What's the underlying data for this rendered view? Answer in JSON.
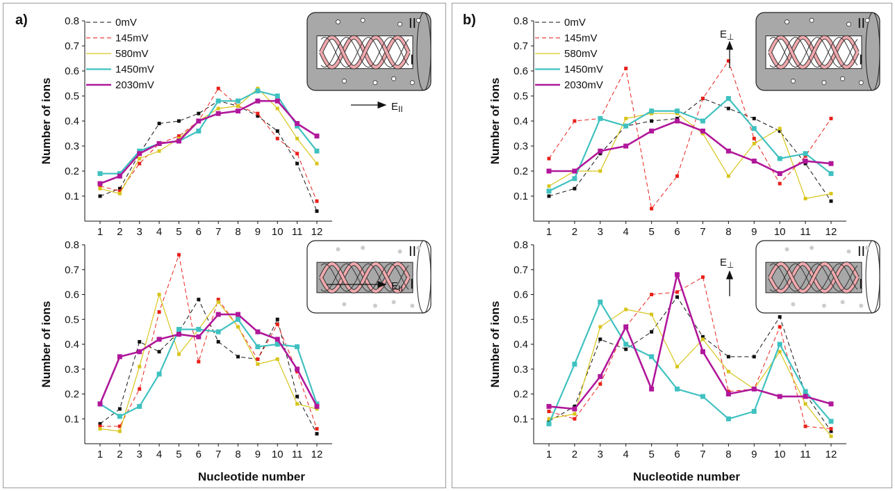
{
  "panels": [
    {
      "letter": "a)"
    },
    {
      "letter": "b)"
    }
  ],
  "x_axis_label": "Nucleotide number",
  "chart_data": [
    {
      "type": "line",
      "panel": "a)",
      "position": "top",
      "ylabel": "Number of ions",
      "ylim": [
        0,
        0.8
      ],
      "yticks": [
        0.1,
        0.2,
        0.3,
        0.4,
        0.5,
        0.6,
        0.7,
        0.8
      ],
      "x": [
        1,
        2,
        3,
        4,
        5,
        6,
        7,
        8,
        9,
        10,
        11,
        12
      ],
      "legend": "top-left",
      "field_label": "E",
      "field_subscript": "II",
      "field_direction": "parallel",
      "inset": "outer-gray",
      "series": [
        {
          "name": "0mV",
          "values": [
            0.1,
            0.13,
            0.27,
            0.39,
            0.4,
            0.43,
            0.48,
            0.46,
            0.42,
            0.36,
            0.23,
            0.04
          ]
        },
        {
          "name": "145mV",
          "values": [
            0.14,
            0.12,
            0.23,
            0.31,
            0.34,
            0.4,
            0.53,
            0.46,
            0.43,
            0.33,
            0.27,
            0.08
          ]
        },
        {
          "name": "580mV",
          "values": [
            0.13,
            0.11,
            0.25,
            0.28,
            0.33,
            0.4,
            0.45,
            0.46,
            0.53,
            0.45,
            0.33,
            0.23
          ]
        },
        {
          "name": "1450mV",
          "values": [
            0.19,
            0.19,
            0.28,
            0.31,
            0.32,
            0.36,
            0.48,
            0.48,
            0.52,
            0.5,
            0.38,
            0.28
          ]
        },
        {
          "name": "2030mV",
          "values": [
            0.15,
            0.18,
            0.27,
            0.31,
            0.32,
            0.4,
            0.43,
            0.44,
            0.48,
            0.48,
            0.39,
            0.34
          ]
        }
      ]
    },
    {
      "type": "line",
      "panel": "a)",
      "position": "bottom",
      "ylabel": "Number of ions",
      "ylim": [
        0,
        0.8
      ],
      "yticks": [
        0.1,
        0.2,
        0.3,
        0.4,
        0.5,
        0.6,
        0.7,
        0.8
      ],
      "x": [
        1,
        2,
        3,
        4,
        5,
        6,
        7,
        8,
        9,
        10,
        11,
        12
      ],
      "field_label": "E",
      "field_subscript": "II",
      "field_direction": "parallel",
      "inset": "inner-gray",
      "series": [
        {
          "name": "0mV",
          "values": [
            0.08,
            0.14,
            0.41,
            0.37,
            0.45,
            0.58,
            0.41,
            0.35,
            0.34,
            0.5,
            0.19,
            0.04
          ]
        },
        {
          "name": "145mV",
          "values": [
            0.07,
            0.07,
            0.22,
            0.53,
            0.76,
            0.33,
            0.58,
            0.47,
            0.34,
            0.48,
            0.29,
            0.06
          ]
        },
        {
          "name": "580mV",
          "values": [
            0.06,
            0.05,
            0.31,
            0.6,
            0.36,
            0.46,
            0.57,
            0.47,
            0.32,
            0.34,
            0.16,
            0.14
          ]
        },
        {
          "name": "1450mV",
          "values": [
            0.16,
            0.11,
            0.15,
            0.28,
            0.46,
            0.46,
            0.45,
            0.5,
            0.39,
            0.4,
            0.39,
            0.16
          ]
        },
        {
          "name": "2030mV",
          "values": [
            0.16,
            0.35,
            0.37,
            0.42,
            0.44,
            0.43,
            0.52,
            0.52,
            0.45,
            0.42,
            0.3,
            0.15
          ]
        }
      ]
    },
    {
      "type": "line",
      "panel": "b)",
      "position": "top",
      "ylabel": "Number of ions",
      "ylim": [
        0,
        0.8
      ],
      "yticks": [
        0.1,
        0.2,
        0.3,
        0.4,
        0.5,
        0.6,
        0.7,
        0.8
      ],
      "x": [
        1,
        2,
        3,
        4,
        5,
        6,
        7,
        8,
        9,
        10,
        11,
        12
      ],
      "legend": "top-left",
      "field_label": "E",
      "field_subscript": "⊥",
      "field_direction": "perpendicular",
      "inset": "outer-gray",
      "series": [
        {
          "name": "0mV",
          "values": [
            0.1,
            0.13,
            0.27,
            0.38,
            0.4,
            0.41,
            0.49,
            0.45,
            0.41,
            0.36,
            0.23,
            0.08
          ]
        },
        {
          "name": "145mV",
          "values": [
            0.25,
            0.4,
            0.41,
            0.61,
            0.05,
            0.18,
            0.49,
            0.64,
            0.33,
            0.15,
            0.26,
            0.41
          ]
        },
        {
          "name": "580mV",
          "values": [
            0.14,
            0.2,
            0.2,
            0.41,
            0.43,
            0.43,
            0.35,
            0.18,
            0.31,
            0.37,
            0.09,
            0.11
          ]
        },
        {
          "name": "1450mV",
          "values": [
            0.12,
            0.17,
            0.41,
            0.38,
            0.44,
            0.44,
            0.4,
            0.49,
            0.37,
            0.25,
            0.27,
            0.19
          ]
        },
        {
          "name": "2030mV",
          "values": [
            0.2,
            0.2,
            0.28,
            0.3,
            0.36,
            0.4,
            0.36,
            0.28,
            0.24,
            0.19,
            0.24,
            0.23
          ]
        }
      ]
    },
    {
      "type": "line",
      "panel": "b)",
      "position": "bottom",
      "ylabel": "Number of ions",
      "ylim": [
        0,
        0.8
      ],
      "yticks": [
        0.1,
        0.2,
        0.3,
        0.4,
        0.5,
        0.6,
        0.7,
        0.8
      ],
      "x": [
        1,
        2,
        3,
        4,
        5,
        6,
        7,
        8,
        9,
        10,
        11,
        12
      ],
      "field_label": "E",
      "field_subscript": "⊥",
      "field_direction": "perpendicular",
      "inset": "inner-gray",
      "series": [
        {
          "name": "0mV",
          "values": [
            0.09,
            0.15,
            0.42,
            0.38,
            0.45,
            0.59,
            0.43,
            0.35,
            0.35,
            0.51,
            0.2,
            0.05
          ]
        },
        {
          "name": "145mV",
          "values": [
            0.13,
            0.1,
            0.24,
            0.47,
            0.6,
            0.61,
            0.67,
            0.21,
            0.22,
            0.47,
            0.07,
            0.06
          ]
        },
        {
          "name": "580mV",
          "values": [
            0.1,
            0.12,
            0.47,
            0.54,
            0.52,
            0.31,
            0.42,
            0.29,
            0.22,
            0.37,
            0.16,
            0.03
          ]
        },
        {
          "name": "1450mV",
          "values": [
            0.08,
            0.32,
            0.57,
            0.4,
            0.35,
            0.22,
            0.19,
            0.1,
            0.13,
            0.4,
            0.21,
            0.09
          ]
        },
        {
          "name": "2030mV",
          "values": [
            0.15,
            0.14,
            0.27,
            0.47,
            0.22,
            0.68,
            0.37,
            0.2,
            0.22,
            0.19,
            0.19,
            0.16
          ]
        }
      ]
    }
  ],
  "colors": {
    "0mV": "#111111",
    "145mV": "#e8201a",
    "580mV": "#d8c51c",
    "1450mV": "#3fc1c0",
    "2030mV": "#b0179a",
    "inset_gray": "#a8a8a8",
    "helix_fill": "#f0a8ac"
  }
}
